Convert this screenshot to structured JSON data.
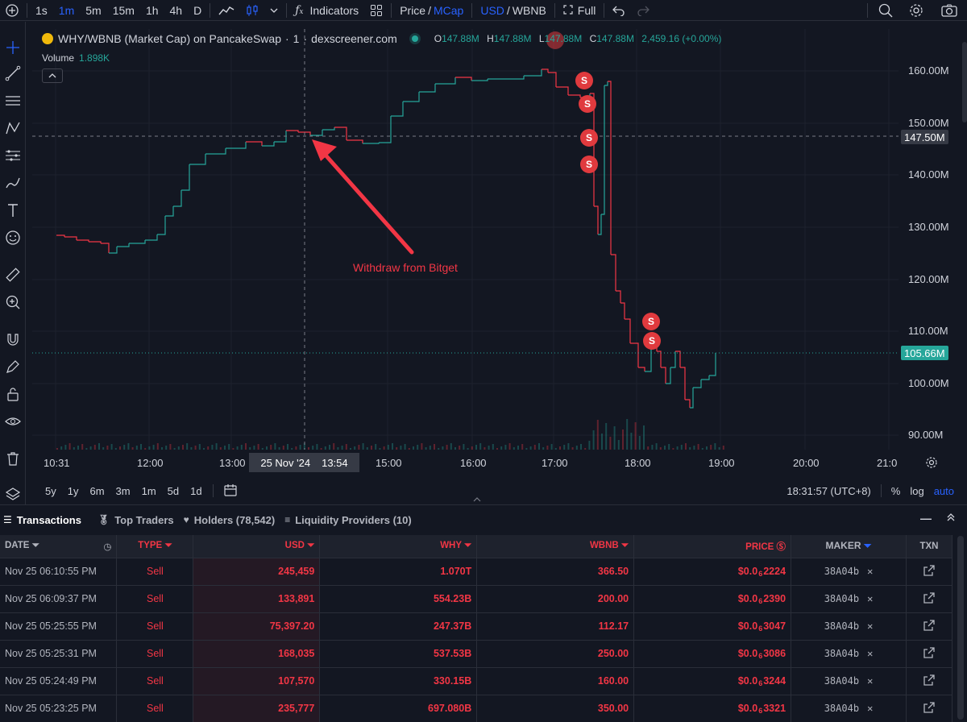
{
  "toolbar": {
    "intervals": [
      "1s",
      "1m",
      "5m",
      "15m",
      "1h",
      "4h",
      "D"
    ],
    "active_interval": "1m",
    "indicators_label": "Indicators",
    "price_label": "Price",
    "mcap_label": "MCap",
    "usd_label": "USD",
    "wbnb_label": "WBNB",
    "full_label": "Full"
  },
  "legend": {
    "pair": "WHY/WBNB (Market Cap) on PancakeSwap",
    "interval": "1",
    "source": "dexscreener.com",
    "o_label": "O",
    "o_value": "147.88M",
    "h_label": "H",
    "h_value": "147.88M",
    "l_label": "L",
    "l_value": "147.88M",
    "c_label": "C",
    "c_value": "147.88M",
    "change": "2,459.16 (+0.00%)",
    "volume_label": "Volume",
    "volume_value": "1.898K"
  },
  "chart_data": {
    "type": "line",
    "price_ticks": [
      "160.00M",
      "150.00M",
      "140.00M",
      "130.00M",
      "120.00M",
      "110.00M",
      "100.00M",
      "90.00M"
    ],
    "time_ticks": [
      "10:31",
      "12:00",
      "13:00",
      "15:00",
      "16:00",
      "17:00",
      "18:00",
      "19:00",
      "20:00",
      "21:0"
    ],
    "crosshair_price": "147.50M",
    "last_price": "105.66M",
    "crosshair_date": "25 Nov '24",
    "crosshair_time": "13:54",
    "annotation": "Withdraw from Bitget",
    "marker_label": "S"
  },
  "range_bar": {
    "ranges": [
      "5y",
      "1y",
      "6m",
      "3m",
      "1m",
      "5d",
      "1d"
    ],
    "clock": "18:31:57 (UTC+8)",
    "percent": "%",
    "log": "log",
    "auto": "auto"
  },
  "panel": {
    "tabs": [
      {
        "label": "Transactions"
      },
      {
        "label": "Top Traders"
      },
      {
        "label": "Holders (78,542)"
      },
      {
        "label": "Liquidity Providers (10)"
      }
    ],
    "columns": {
      "date": "DATE",
      "type": "TYPE",
      "usd": "USD",
      "why": "WHY",
      "wbnb": "WBNB",
      "price": "PRICE",
      "maker": "MAKER",
      "txn": "TXN"
    },
    "rows": [
      {
        "date": "Nov 25 06:10:55 PM",
        "type": "Sell",
        "usd": "245,459",
        "why": "1.070T",
        "wbnb": "366.50",
        "price_pre": "$0.0",
        "price_sub": "6",
        "price_post": "2224",
        "maker": "38A04b"
      },
      {
        "date": "Nov 25 06:09:37 PM",
        "type": "Sell",
        "usd": "133,891",
        "why": "554.23B",
        "wbnb": "200.00",
        "price_pre": "$0.0",
        "price_sub": "6",
        "price_post": "2390",
        "maker": "38A04b"
      },
      {
        "date": "Nov 25 05:25:55 PM",
        "type": "Sell",
        "usd": "75,397.20",
        "why": "247.37B",
        "wbnb": "112.17",
        "price_pre": "$0.0",
        "price_sub": "6",
        "price_post": "3047",
        "maker": "38A04b"
      },
      {
        "date": "Nov 25 05:25:31 PM",
        "type": "Sell",
        "usd": "168,035",
        "why": "537.53B",
        "wbnb": "250.00",
        "price_pre": "$0.0",
        "price_sub": "6",
        "price_post": "3086",
        "maker": "38A04b"
      },
      {
        "date": "Nov 25 05:24:49 PM",
        "type": "Sell",
        "usd": "107,570",
        "why": "330.15B",
        "wbnb": "160.00",
        "price_pre": "$0.0",
        "price_sub": "6",
        "price_post": "3244",
        "maker": "38A04b"
      },
      {
        "date": "Nov 25 05:23:25 PM",
        "type": "Sell",
        "usd": "235,777",
        "why": "697.080B",
        "wbnb": "350.00",
        "price_pre": "$0.0",
        "price_sub": "6",
        "price_post": "3321",
        "maker": "38A04b"
      }
    ]
  },
  "colors": {
    "up": "#26a69a",
    "down": "#f23645",
    "accent": "#2962ff",
    "background": "#131722"
  }
}
